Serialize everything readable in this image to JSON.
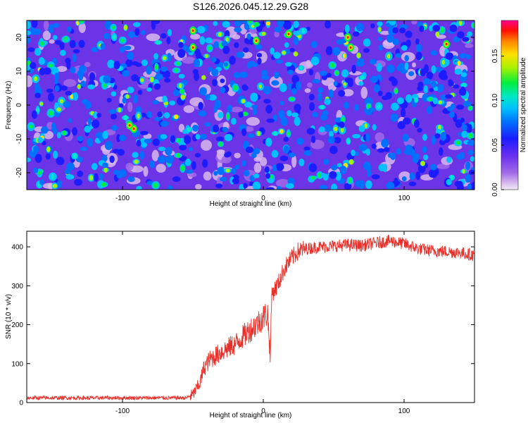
{
  "title": "S126.2026.045.12.29.G28",
  "colors": {
    "line": "#e8302a",
    "axis": "#000000",
    "background": "#ffffff",
    "colormap": [
      "#f3eaf7",
      "#d8b8ec",
      "#a06ae8",
      "#6a2ff0",
      "#1c1cff",
      "#0070ff",
      "#00c0ff",
      "#00e8c8",
      "#00ee40",
      "#a8f000",
      "#ffe000",
      "#ff8000",
      "#ff1000",
      "#ff0090"
    ]
  },
  "chart_data": [
    {
      "id": "spectrogram",
      "type": "heatmap",
      "title": "S126.2026.045.12.29.G28",
      "xlabel": "Height of straight line (km)",
      "ylabel": "Frequency (Hz)",
      "xlim": [
        -168,
        150
      ],
      "ylim": [
        -25,
        25
      ],
      "xticks": [
        -100,
        0,
        100
      ],
      "yticks": [
        -20,
        -10,
        0,
        10,
        20
      ],
      "colorbar": {
        "label": "Normalized spectral amplitude",
        "range": [
          0.0,
          0.19
        ],
        "ticks": [
          "0.00",
          "0.05",
          "0.10",
          "0.15"
        ],
        "tick_values": [
          0.0,
          0.05,
          0.1,
          0.15
        ]
      },
      "description_values": {
        "typical_amplitude": 0.05,
        "peak_amplitude": 0.19
      }
    },
    {
      "id": "snr",
      "type": "line",
      "xlabel": "Height of straight line (km)",
      "ylabel": "SNR (10 * v/v)",
      "xlim": [
        -168,
        150
      ],
      "ylim": [
        0,
        440
      ],
      "xticks": [
        -100,
        0,
        100
      ],
      "yticks": [
        0,
        100,
        200,
        300,
        400
      ],
      "series": [
        {
          "name": "SNR",
          "x": [
            -168,
            -120,
            -80,
            -55,
            -50,
            -45,
            -42,
            -38,
            -30,
            -20,
            -10,
            -5,
            0,
            3,
            5,
            6,
            10,
            15,
            20,
            25,
            30,
            40,
            50,
            60,
            70,
            80,
            90,
            100,
            110,
            120,
            130,
            140,
            150
          ],
          "y": [
            12,
            12,
            12,
            12,
            20,
            50,
            90,
            110,
            130,
            150,
            185,
            200,
            220,
            230,
            120,
            280,
            300,
            345,
            370,
            390,
            395,
            400,
            402,
            405,
            403,
            410,
            415,
            408,
            395,
            390,
            388,
            385,
            378
          ]
        }
      ]
    }
  ]
}
